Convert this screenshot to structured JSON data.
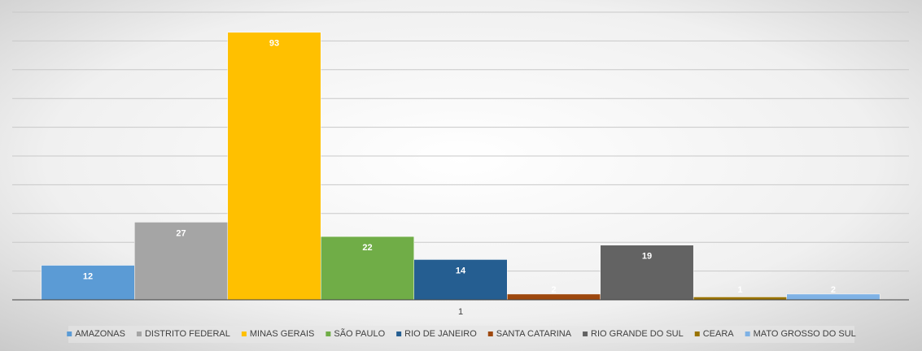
{
  "chart_data": {
    "type": "bar",
    "categories": [
      "1"
    ],
    "series": [
      {
        "name": "AMAZONAS",
        "color": "#5b9bd5",
        "values": [
          12
        ]
      },
      {
        "name": "DISTRITO FEDERAL",
        "color": "#a5a5a5",
        "values": [
          27
        ]
      },
      {
        "name": "MINAS GERAIS",
        "color": "#ffc000",
        "values": [
          93
        ]
      },
      {
        "name": "SÃO PAULO",
        "color": "#70ad47",
        "values": [
          22
        ]
      },
      {
        "name": "RIO DE JANEIRO",
        "color": "#255e91",
        "values": [
          14
        ]
      },
      {
        "name": "SANTA CATARINA",
        "color": "#9e480e",
        "values": [
          2
        ]
      },
      {
        "name": "RIO GRANDE DO SUL",
        "color": "#636363",
        "values": [
          19
        ]
      },
      {
        "name": "CEARA",
        "color": "#997300",
        "values": [
          1
        ]
      },
      {
        "name": "MATO GROSSO DO SUL",
        "color": "#7fb2e5",
        "values": [
          2
        ]
      }
    ],
    "ylim": [
      0,
      100
    ],
    "yticks": [
      0,
      10,
      20,
      30,
      40,
      50,
      60,
      70,
      80,
      90,
      100
    ],
    "grid": true,
    "legend": "bottom"
  }
}
